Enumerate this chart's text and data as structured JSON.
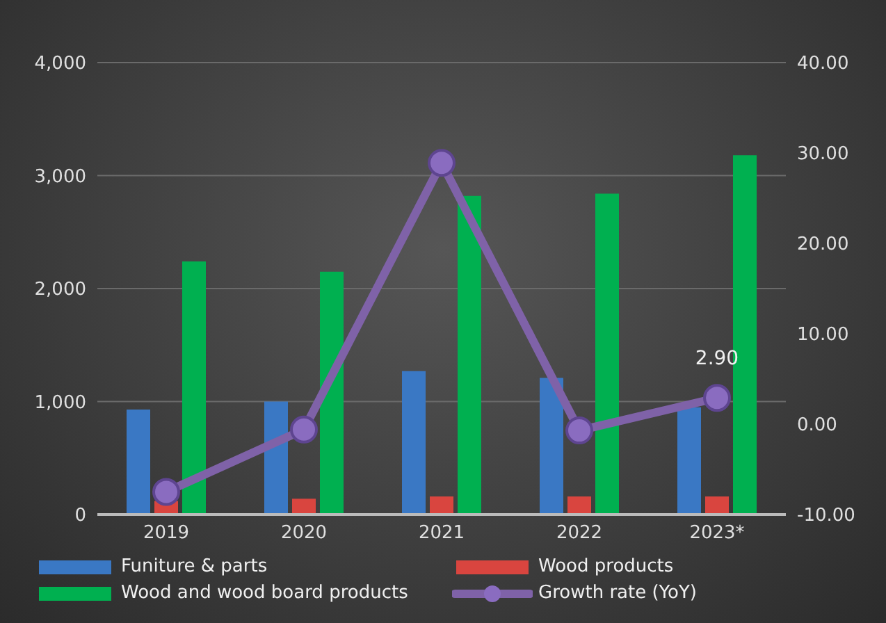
{
  "chart_data": {
    "type": "bar",
    "categories": [
      "2019",
      "2020",
      "2021",
      "2022",
      "2023*"
    ],
    "series": [
      {
        "name": "Funiture & parts",
        "color": "#3a78c4",
        "values": [
          930,
          1000,
          1270,
          1210,
          950
        ]
      },
      {
        "name": "Wood products",
        "color": "#d9453f",
        "values": [
          120,
          140,
          160,
          160,
          160
        ]
      },
      {
        "name": "Wood and wood board products",
        "color": "#00b050",
        "values": [
          2240,
          2150,
          2820,
          2840,
          3180
        ]
      },
      {
        "name": "Growth rate (YoY)",
        "type": "line",
        "axis": "y2",
        "color": "#7f62a8",
        "marker": "circle",
        "values": [
          -7.5,
          -0.6,
          28.9,
          -0.7,
          2.9
        ],
        "value_labels": [
          null,
          null,
          null,
          null,
          "2.90"
        ]
      }
    ],
    "ylim": [
      0,
      4000
    ],
    "yticks": [
      {
        "value": 0,
        "label": "0"
      },
      {
        "value": 1000,
        "label": "1,000"
      },
      {
        "value": 2000,
        "label": "2,000"
      },
      {
        "value": 3000,
        "label": "3,000"
      },
      {
        "value": 4000,
        "label": "4,000"
      }
    ],
    "y2lim": [
      -10,
      40
    ],
    "y2ticks": [
      {
        "value": -10,
        "label": "-10.00"
      },
      {
        "value": 0,
        "label": "0.00"
      },
      {
        "value": 10,
        "label": "10.00"
      },
      {
        "value": 20,
        "label": "20.00"
      },
      {
        "value": 30,
        "label": "30.00"
      },
      {
        "value": 40,
        "label": "40.00"
      }
    ],
    "grid": "y",
    "legend": "bottom"
  }
}
